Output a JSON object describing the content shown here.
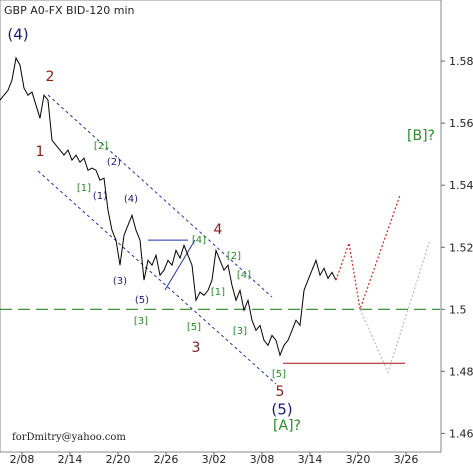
{
  "chart_data": {
    "type": "line",
    "title": "GBP A0-FX BID-120 min",
    "footer": "forDmitry@yahoo.com",
    "xlim": [
      0,
      110
    ],
    "ylim": [
      1.454,
      1.5997
    ],
    "xticks": [
      {
        "value": 5.5,
        "label": "2/08"
      },
      {
        "value": 17.5,
        "label": "2/14"
      },
      {
        "value": 29.5,
        "label": "2/20"
      },
      {
        "value": 41.5,
        "label": "2/26"
      },
      {
        "value": 53.5,
        "label": "3/02"
      },
      {
        "value": 65.5,
        "label": "3/08"
      },
      {
        "value": 77.5,
        "label": "3/14"
      },
      {
        "value": 89.5,
        "label": "3/20"
      },
      {
        "value": 101.5,
        "label": "3/26"
      }
    ],
    "yticks": [
      1.46,
      1.48,
      1.5,
      1.52,
      1.54,
      1.56,
      1.58
    ],
    "series": [
      {
        "name": "GBP",
        "color": "#000000",
        "x": [
          0,
          1,
          2,
          3,
          4,
          5,
          6,
          7,
          8,
          9,
          10,
          11,
          12,
          13,
          14,
          15,
          16,
          17,
          18,
          19,
          20,
          21,
          22,
          23,
          24,
          25,
          26,
          27,
          28,
          29,
          30,
          31,
          32,
          33,
          34,
          35,
          36,
          37,
          38,
          39,
          40,
          41,
          42,
          43,
          44,
          45,
          46,
          47,
          48,
          49,
          50,
          51,
          52,
          53,
          54,
          55,
          56,
          57,
          58,
          59,
          60,
          61,
          62,
          63,
          64,
          65,
          66,
          67,
          68,
          69,
          70,
          71,
          72,
          73,
          74,
          75,
          76,
          77,
          78,
          79,
          80,
          81,
          82,
          83,
          84
        ],
        "values": [
          1.5674,
          1.569,
          1.5706,
          1.5739,
          1.581,
          1.5787,
          1.5713,
          1.569,
          1.57,
          1.5658,
          1.5616,
          1.569,
          1.5674,
          1.5545,
          1.5529,
          1.5513,
          1.5497,
          1.5513,
          1.5481,
          1.5497,
          1.5474,
          1.5487,
          1.5448,
          1.5455,
          1.5448,
          1.5416,
          1.5423,
          1.5319,
          1.5255,
          1.5223,
          1.5142,
          1.5239,
          1.5271,
          1.5303,
          1.5255,
          1.5223,
          1.5094,
          1.5158,
          1.5142,
          1.5174,
          1.511,
          1.5126,
          1.5158,
          1.5142,
          1.519,
          1.5165,
          1.5206,
          1.5174,
          1.5142,
          1.5029,
          1.5055,
          1.5045,
          1.5061,
          1.5094,
          1.519,
          1.5158,
          1.5126,
          1.5142,
          1.5077,
          1.5029,
          1.5061,
          1.4997,
          1.5029,
          1.4965,
          1.4932,
          1.4948,
          1.49,
          1.4884,
          1.4916,
          1.49,
          1.4852,
          1.4884,
          1.49,
          1.4932,
          1.4965,
          1.4948,
          1.5061,
          1.5094,
          1.5126,
          1.5158,
          1.511,
          1.5132,
          1.51,
          1.5119,
          1.5094
        ]
      },
      {
        "name": "forecast",
        "color": "#dd2222",
        "x": [
          84,
          87.25,
          90,
          100
        ],
        "values": [
          1.5094,
          1.5213,
          1.5,
          1.5368
        ]
      },
      {
        "name": "alternative",
        "color": "#bbbbbb",
        "x": [
          90,
          97,
          107.5
        ],
        "values": [
          1.5,
          1.4797,
          1.5223
        ]
      }
    ],
    "levels": [
      {
        "value": 1.5,
        "color": "#2a8a2a",
        "dashed": true
      },
      {
        "value": 1.4826,
        "color": "#a01010",
        "dashed": false,
        "x": [
          70.75,
          101.25
        ]
      },
      {
        "value": 1.5223,
        "color": "#2233aa",
        "dashed": false,
        "x": [
          37,
          47
        ]
      }
    ],
    "annotations": [
      "(4)",
      "2",
      "1",
      "[2]",
      "(2)",
      "[1]",
      "(1)",
      "(4)",
      "(3)",
      "[4]",
      "4",
      "[2]",
      "[4]",
      "(5)",
      "[3]",
      "[5]",
      "[1]",
      "[3]",
      "3",
      "[5]",
      "5",
      "(5)",
      "[A]?",
      "[B]?"
    ]
  }
}
